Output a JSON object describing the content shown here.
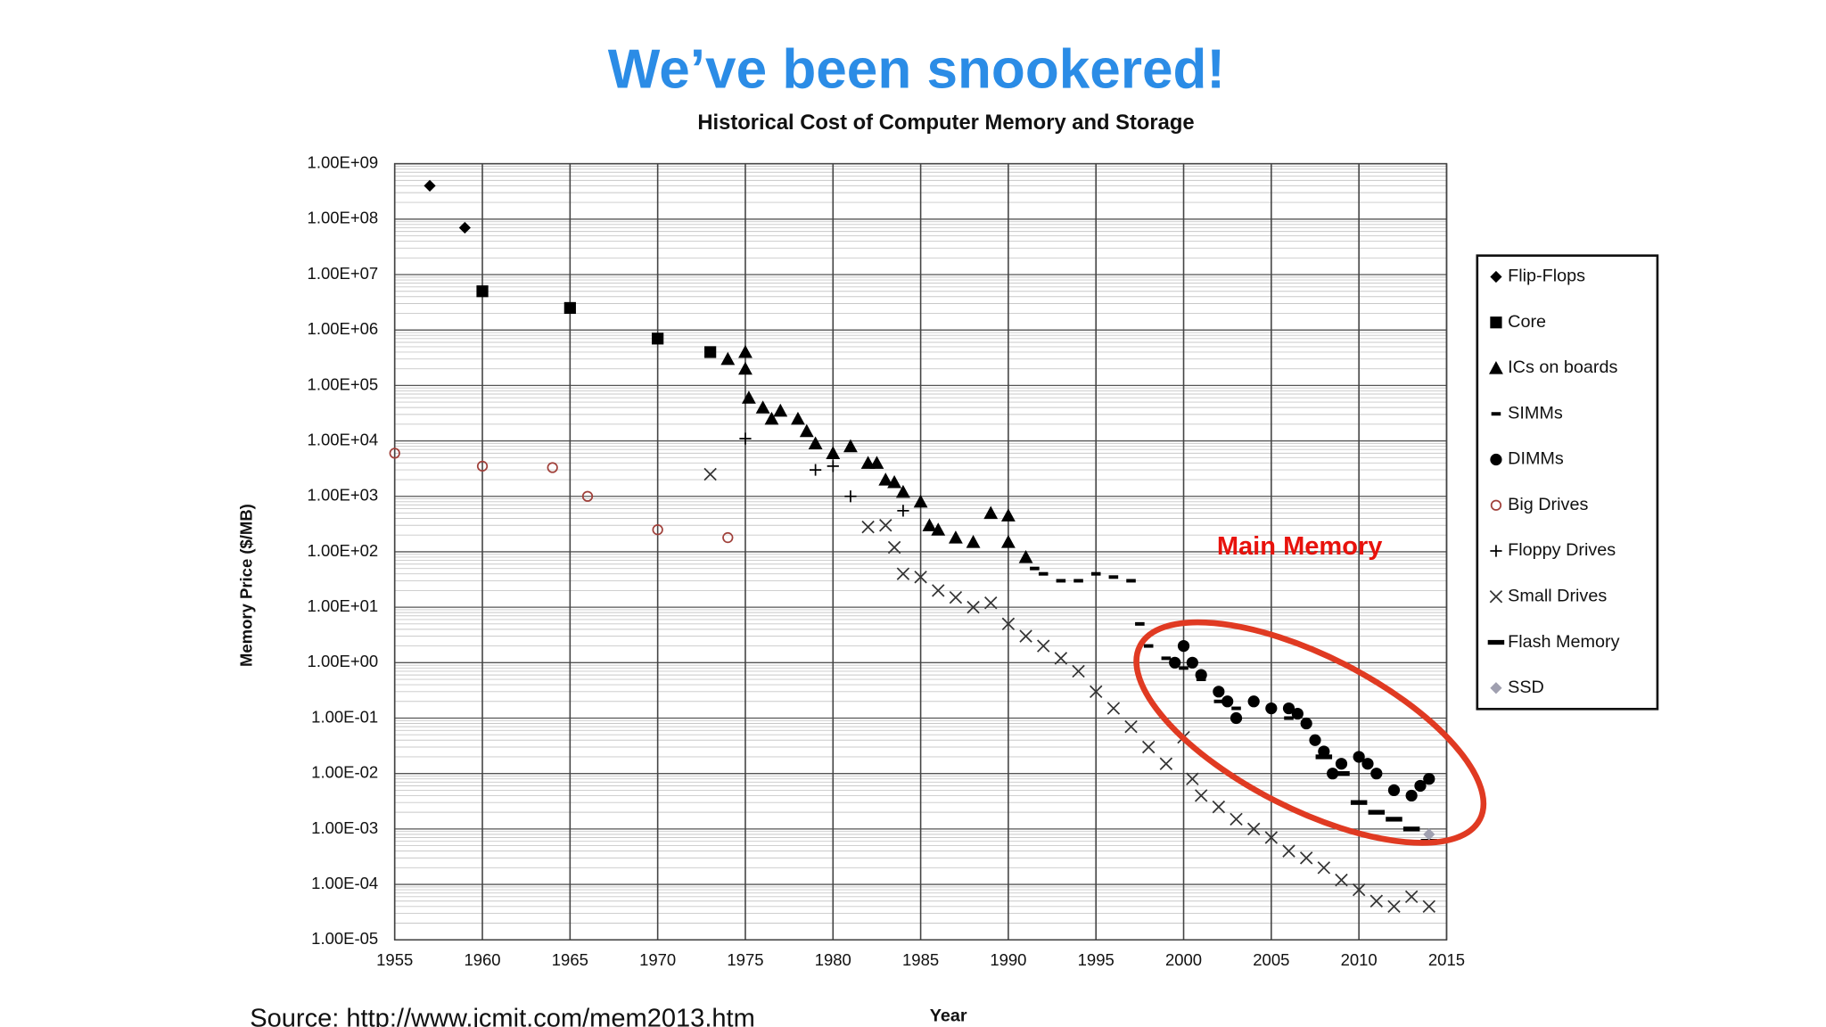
{
  "slide_title": "We’ve been snookered!",
  "source": "Source: http://www.jcmit.com/mem2013.htm",
  "chart_data": {
    "type": "scatter",
    "title": "Historical Cost of Computer Memory and Storage",
    "x_label": "Year",
    "y_label": "Memory Price ($/MB)",
    "annotation": "Main Memory",
    "log_y": true,
    "grid": true,
    "legend": "right",
    "xlim": [
      1955,
      2015
    ],
    "xticks": [
      1955,
      1960,
      1965,
      1970,
      1975,
      1980,
      1985,
      1990,
      1995,
      2000,
      2005,
      2010,
      2015
    ],
    "ylim": [
      1e-05,
      1000000000.0
    ],
    "yticks": [
      {
        "value": 1000000000.0,
        "label": "1.00E+09"
      },
      {
        "value": 100000000.0,
        "label": "1.00E+08"
      },
      {
        "value": 10000000.0,
        "label": "1.00E+07"
      },
      {
        "value": 1000000.0,
        "label": "1.00E+06"
      },
      {
        "value": 100000.0,
        "label": "1.00E+05"
      },
      {
        "value": 10000.0,
        "label": "1.00E+04"
      },
      {
        "value": 1000.0,
        "label": "1.00E+03"
      },
      {
        "value": 100.0,
        "label": "1.00E+02"
      },
      {
        "value": 10.0,
        "label": "1.00E+01"
      },
      {
        "value": 1,
        "label": "1.00E+00"
      },
      {
        "value": 0.1,
        "label": "1.00E-01"
      },
      {
        "value": 0.01,
        "label": "1.00E-02"
      },
      {
        "value": 0.001,
        "label": "1.00E-03"
      },
      {
        "value": 0.0001,
        "label": "1.00E-04"
      },
      {
        "value": 1e-05,
        "label": "1.00E-05"
      }
    ],
    "series": [
      {
        "name": "Flip-Flops",
        "marker": "diamond",
        "color": "#000000",
        "x": [
          1957,
          1959
        ],
        "values": [
          400000000.0,
          70000000.0
        ]
      },
      {
        "name": "Core",
        "marker": "square",
        "color": "#000000",
        "x": [
          1960,
          1965,
          1970,
          1973
        ],
        "values": [
          5000000.0,
          2500000.0,
          700000.0,
          400000.0
        ]
      },
      {
        "name": "ICs on boards",
        "marker": "triangle",
        "color": "#000000",
        "x": [
          1974,
          1975,
          1975,
          1975.2,
          1976,
          1976.5,
          1977,
          1978,
          1978.5,
          1979,
          1980,
          1981,
          1982,
          1982.5,
          1983,
          1983.5,
          1984,
          1985,
          1985.5,
          1986,
          1987,
          1988,
          1989,
          1990,
          1990,
          1991
        ],
        "values": [
          300000.0,
          400000.0,
          200000.0,
          60000.0,
          40000.0,
          25000.0,
          35000.0,
          25000.0,
          15000.0,
          9000.0,
          6000.0,
          8000.0,
          4000.0,
          4000.0,
          2000.0,
          1800.0,
          1200.0,
          800.0,
          300.0,
          250.0,
          180.0,
          150.0,
          500.0,
          450.0,
          150.0,
          80.0
        ]
      },
      {
        "name": "SIMMs",
        "marker": "smalldash",
        "color": "#000000",
        "x": [
          1991.5,
          1992,
          1993,
          1994,
          1995,
          1996,
          1997,
          1997.5,
          1998,
          1999,
          2000,
          2001,
          2002,
          2003,
          2004,
          2005,
          2006
        ],
        "values": [
          50,
          40,
          30,
          30,
          40,
          35,
          30,
          5,
          2,
          1.2,
          0.8,
          0.5,
          0.2,
          0.15,
          0.2,
          0.15,
          0.1
        ]
      },
      {
        "name": "DIMMs",
        "marker": "circle",
        "color": "#000000",
        "x": [
          1999.5,
          2000,
          2000.5,
          2001,
          2002,
          2002.5,
          2003,
          2004,
          2005,
          2006,
          2006.5,
          2007,
          2007.5,
          2008,
          2008.5,
          2009,
          2010,
          2010.5,
          2011,
          2012,
          2013,
          2013.5,
          2014
        ],
        "values": [
          1,
          2,
          1,
          0.6,
          0.3,
          0.2,
          0.1,
          0.2,
          0.15,
          0.15,
          0.12,
          0.08,
          0.04,
          0.025,
          0.01,
          0.015,
          0.02,
          0.015,
          0.01,
          0.005,
          0.004,
          0.006,
          0.008
        ]
      },
      {
        "name": "Big Drives",
        "marker": "opencircle",
        "color": "#a0403a",
        "x": [
          1955,
          1960,
          1964,
          1966,
          1970,
          1974
        ],
        "values": [
          6000,
          3500,
          3300,
          1000,
          250,
          180
        ]
      },
      {
        "name": "Floppy Drives",
        "marker": "plus",
        "color": "#000000",
        "x": [
          1975,
          1979,
          1980,
          1981,
          1984
        ],
        "values": [
          11000,
          3000,
          3500,
          1000,
          550
        ]
      },
      {
        "name": "Small Drives",
        "marker": "cross",
        "color": "#333333",
        "x": [
          1973,
          1982,
          1983,
          1983.5,
          1984,
          1985,
          1986,
          1987,
          1988,
          1989,
          1990,
          1991,
          1992,
          1993,
          1994,
          1995,
          1996,
          1997,
          1998,
          1999,
          2000,
          2000.5,
          2001,
          2002,
          2003,
          2004,
          2005,
          2006,
          2007,
          2008,
          2009,
          2010,
          2011,
          2012,
          2013,
          2014
        ],
        "values": [
          2500,
          280,
          300,
          120,
          40,
          35,
          20,
          15,
          10,
          12,
          5,
          3,
          2,
          1.2,
          0.7,
          0.3,
          0.15,
          0.07,
          0.03,
          0.015,
          0.045,
          0.008,
          0.004,
          0.0025,
          0.0015,
          0.001,
          0.0007,
          0.0004,
          0.0003,
          0.0002,
          0.00012,
          8e-05,
          5e-05,
          4e-05,
          6e-05,
          4e-05
        ]
      },
      {
        "name": "Flash Memory",
        "marker": "dash",
        "color": "#000000",
        "x": [
          2008,
          2009,
          2010,
          2011,
          2012,
          2013,
          2014
        ],
        "values": [
          0.02,
          0.01,
          0.003,
          0.002,
          0.0015,
          0.001,
          0.0006
        ]
      },
      {
        "name": "SSD",
        "marker": "diamond",
        "color": "#a0a0b0",
        "x": [
          2014
        ],
        "values": [
          0.0008
        ]
      }
    ]
  }
}
